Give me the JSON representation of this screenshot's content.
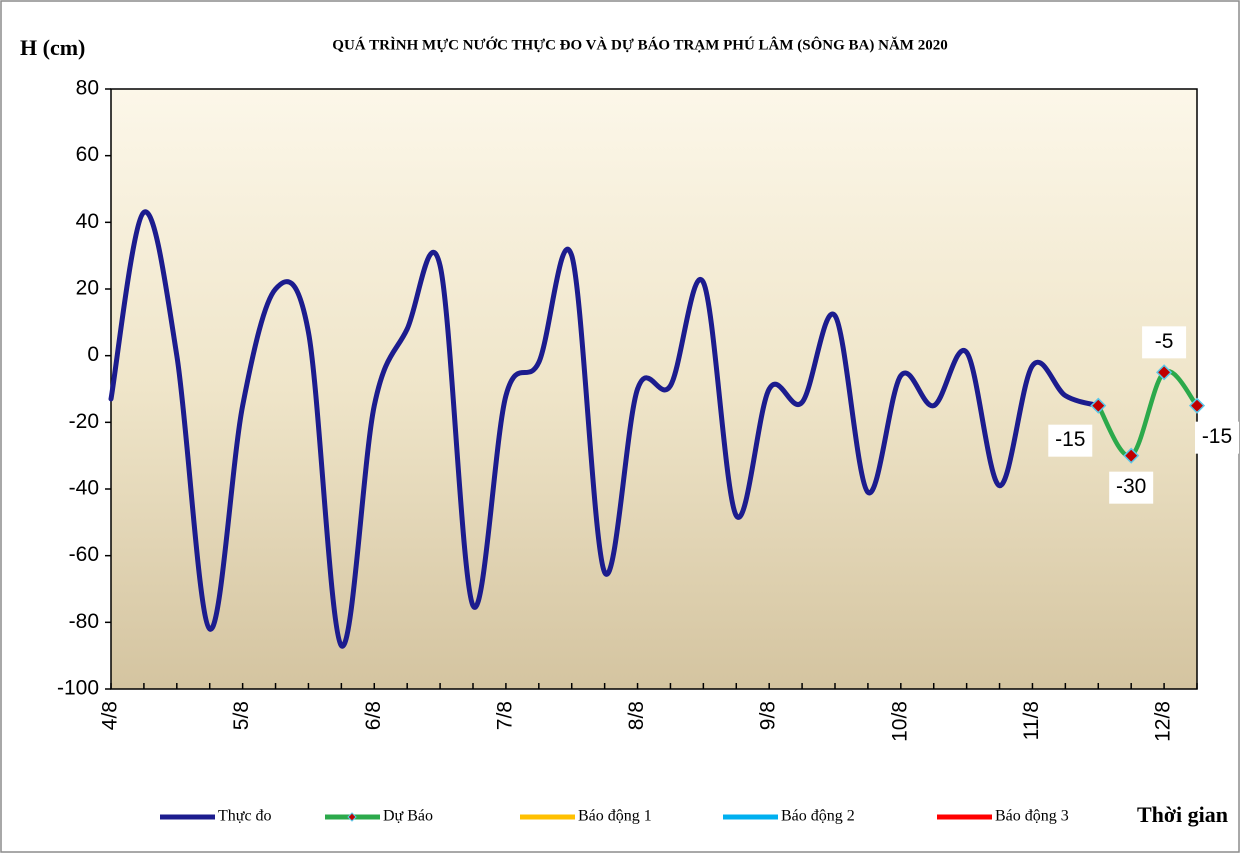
{
  "chart_data": {
    "type": "line",
    "title": "QUÁ TRÌNH MỰC NƯỚC THỰC ĐO VÀ DỰ BÁO TRẠM  PHÚ LÂM (SÔNG BA) NĂM 2020",
    "y_label": "H (cm)",
    "x_label": "Thời gian",
    "categories": [
      "4/8",
      null,
      null,
      null,
      "5/8",
      null,
      null,
      null,
      "6/8",
      null,
      null,
      null,
      "7/8",
      null,
      null,
      null,
      "8/8",
      null,
      null,
      null,
      "9/8",
      null,
      null,
      null,
      "10/8",
      null,
      null,
      null,
      "11/8",
      null,
      null,
      null,
      "12/8",
      null
    ],
    "series": [
      {
        "name": "Thực đo",
        "color": "#1c1c8e",
        "values": [
          -13,
          43,
          0,
          -82,
          -15,
          20,
          7,
          -87,
          -15,
          8,
          27,
          -75,
          -12,
          -2,
          30,
          -65,
          -10,
          -9,
          22,
          -48,
          -10,
          -14,
          12,
          -41,
          -6,
          -15,
          1,
          -39,
          -3,
          -12,
          -15,
          null,
          null,
          null
        ]
      },
      {
        "name": "Dự Báo",
        "color": "#2ca94b",
        "values": [
          null,
          null,
          null,
          null,
          null,
          null,
          null,
          null,
          null,
          null,
          null,
          null,
          null,
          null,
          null,
          null,
          null,
          null,
          null,
          null,
          null,
          null,
          null,
          null,
          null,
          null,
          null,
          null,
          null,
          null,
          -15,
          -30,
          -5,
          -15
        ]
      },
      {
        "name": "Báo động 1",
        "color": "#ffc000",
        "values": [
          null,
          null,
          null,
          null,
          null,
          null,
          null,
          null,
          null,
          null,
          null,
          null,
          null,
          null,
          null,
          null,
          null,
          null,
          null,
          null,
          null,
          null,
          null,
          null,
          null,
          null,
          null,
          null,
          null,
          null,
          null,
          null,
          null,
          null
        ]
      },
      {
        "name": "Báo động 2",
        "color": "#00b0f0",
        "values": [
          null,
          null,
          null,
          null,
          null,
          null,
          null,
          null,
          null,
          null,
          null,
          null,
          null,
          null,
          null,
          null,
          null,
          null,
          null,
          null,
          null,
          null,
          null,
          null,
          null,
          null,
          null,
          null,
          null,
          null,
          null,
          null,
          null,
          null
        ]
      },
      {
        "name": "Báo động 3",
        "color": "#ff0000",
        "values": [
          null,
          null,
          null,
          null,
          null,
          null,
          null,
          null,
          null,
          null,
          null,
          null,
          null,
          null,
          null,
          null,
          null,
          null,
          null,
          null,
          null,
          null,
          null,
          null,
          null,
          null,
          null,
          null,
          null,
          null,
          null,
          null,
          null,
          null
        ]
      }
    ],
    "ylim": [
      -100,
      80
    ],
    "yticks": [
      -100,
      -80,
      -60,
      -40,
      -20,
      0,
      20,
      40,
      60,
      80
    ]
  }
}
